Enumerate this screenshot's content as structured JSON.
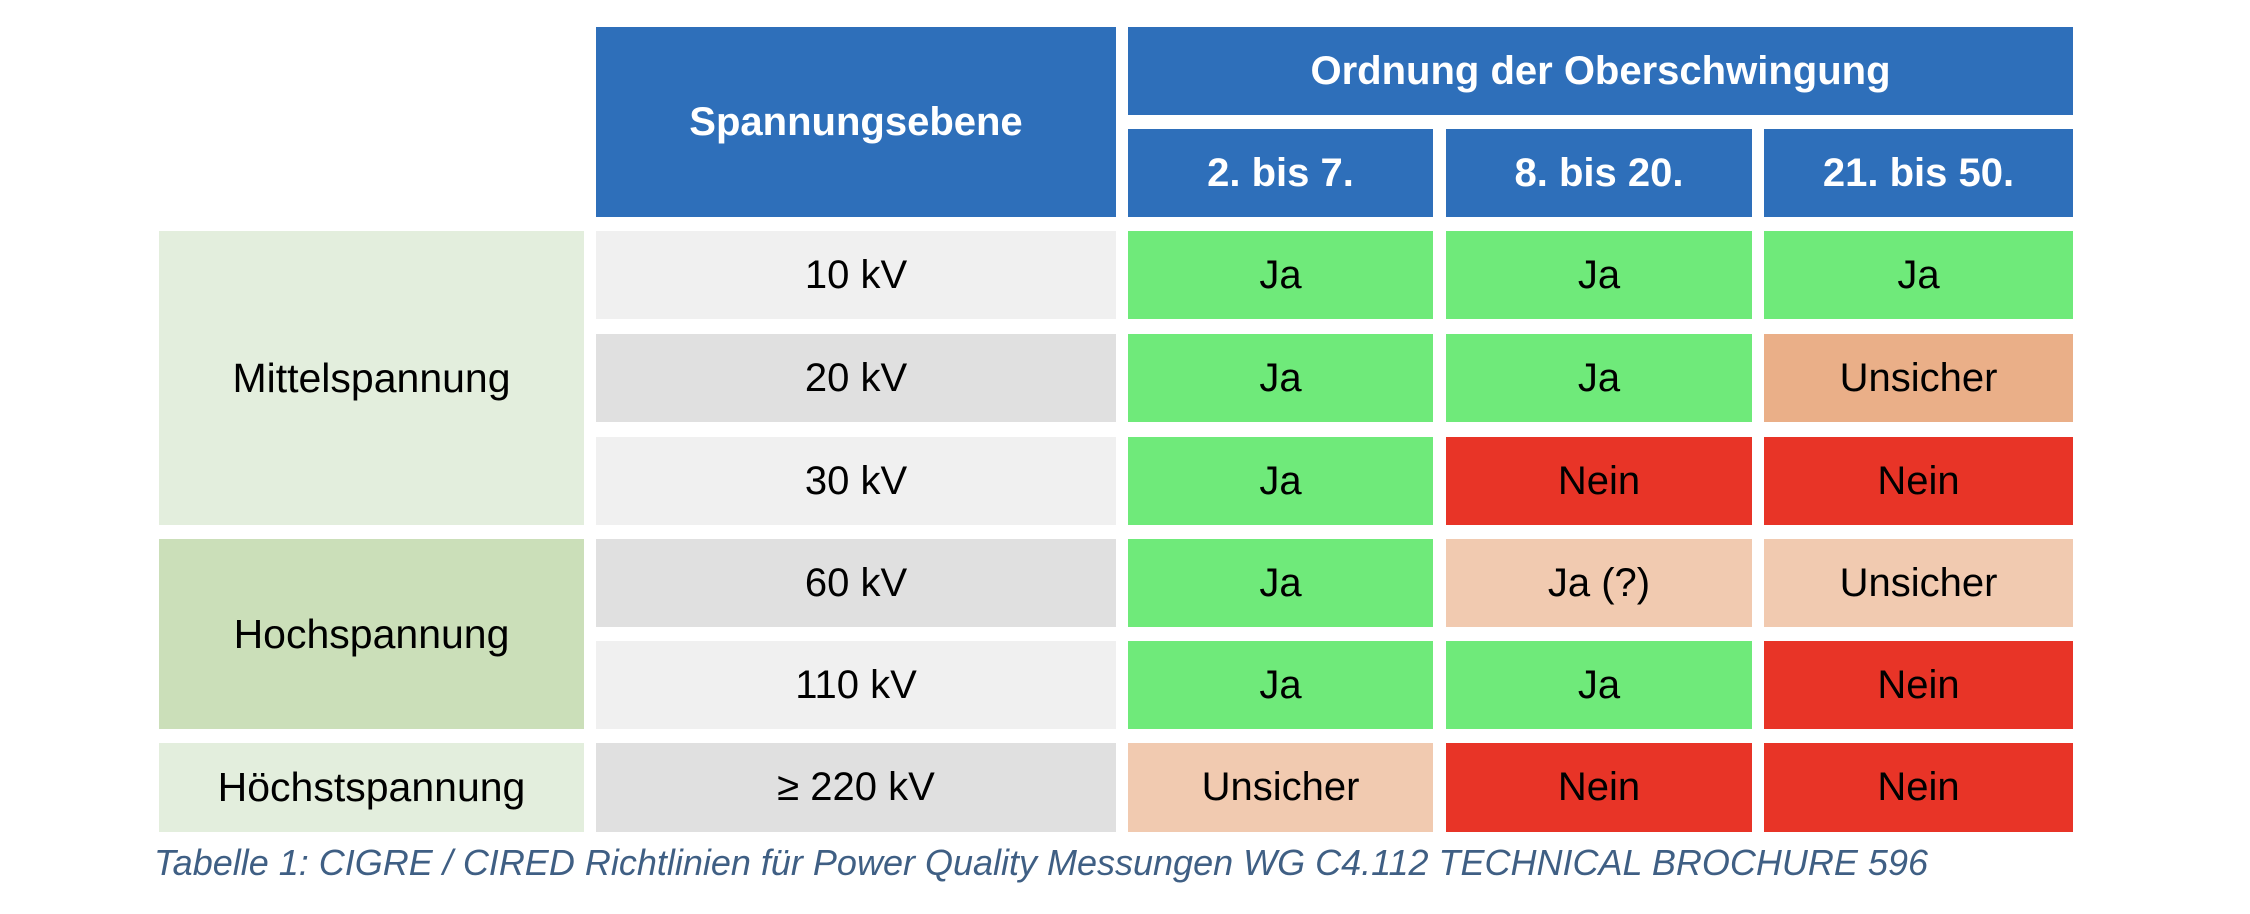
{
  "colors": {
    "header": "#2e6fba",
    "header_text": "#ffffff",
    "voltage_cell_light": "#f0f0f0",
    "voltage_cell_dark": "#e0e0e0",
    "group_mittel": "#e3eedd",
    "group_hoch": "#cbdfb9",
    "group_hoechst": "#e3eedd",
    "ja": "#6fea7a",
    "nein": "#e83427",
    "unsicher_dark": "#eaaf88",
    "unsicher_light": "#f1cab0",
    "caption_text": "#3f5f84"
  },
  "table": {
    "header": {
      "voltage_level": "Spannungsebene",
      "harmonic_order": "Ordnung der Oberschwingung",
      "columns": [
        "2. bis 7.",
        "8. bis 20.",
        "21. bis 50."
      ]
    },
    "groups": [
      "Mittelspannung",
      "Hochspannung",
      "Höchstspannung"
    ],
    "rows": [
      {
        "voltage": "10 kV",
        "values": [
          "Ja",
          "Ja",
          "Ja"
        ]
      },
      {
        "voltage": "20 kV",
        "values": [
          "Ja",
          "Ja",
          "Unsicher"
        ]
      },
      {
        "voltage": "30 kV",
        "values": [
          "Ja",
          "Nein",
          "Nein"
        ]
      },
      {
        "voltage": "60 kV",
        "values": [
          "Ja",
          "Ja (?)",
          "Unsicher"
        ]
      },
      {
        "voltage": "110 kV",
        "values": [
          "Ja",
          "Ja",
          "Nein"
        ]
      },
      {
        "voltage": "≥ 220 kV",
        "values": [
          "Unsicher",
          "Nein",
          "Nein"
        ]
      }
    ]
  },
  "caption": "Tabelle 1: CIGRE / CIRED Richtlinien für Power Quality Messungen WG C4.112 TECHNICAL BROCHURE 596"
}
